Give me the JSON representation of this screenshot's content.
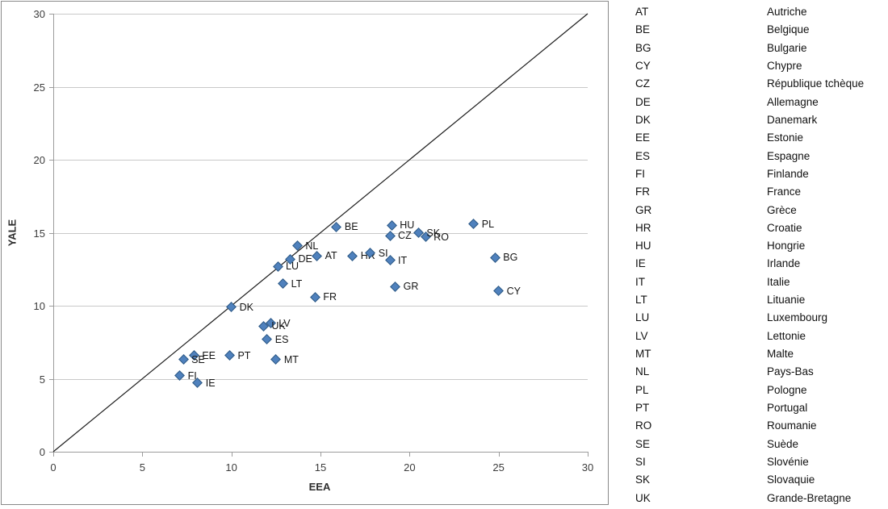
{
  "chart_data": {
    "type": "scatter",
    "title": "",
    "xlabel": "EEA",
    "ylabel": "YALE",
    "xlim": [
      0,
      30
    ],
    "ylim": [
      0,
      30
    ],
    "xticks": [
      0,
      5,
      10,
      15,
      20,
      25,
      30
    ],
    "yticks": [
      0,
      5,
      10,
      15,
      20,
      25,
      30
    ],
    "grid": "horizontal gridlines every 5 units",
    "reference_line": {
      "type": "diagonal",
      "from": [
        0,
        0
      ],
      "to": [
        30,
        30
      ]
    },
    "marker": {
      "shape": "diamond",
      "fill": "#4f81bd",
      "border": "#2e5984"
    },
    "points": [
      {
        "label": "AT",
        "x": 14.8,
        "y": 13.4
      },
      {
        "label": "BE",
        "x": 15.9,
        "y": 15.4
      },
      {
        "label": "BG",
        "x": 24.8,
        "y": 13.3
      },
      {
        "label": "CY",
        "x": 25.0,
        "y": 11.0
      },
      {
        "label": "CZ",
        "x": 18.9,
        "y": 14.8
      },
      {
        "label": "DE",
        "x": 13.3,
        "y": 13.2
      },
      {
        "label": "DK",
        "x": 10.0,
        "y": 9.9
      },
      {
        "label": "EE",
        "x": 7.9,
        "y": 6.6
      },
      {
        "label": "ES",
        "x": 12.0,
        "y": 7.7
      },
      {
        "label": "FI",
        "x": 7.1,
        "y": 5.2
      },
      {
        "label": "FR",
        "x": 14.7,
        "y": 10.6
      },
      {
        "label": "GR",
        "x": 19.2,
        "y": 11.3
      },
      {
        "label": "HR",
        "x": 16.8,
        "y": 13.4
      },
      {
        "label": "HU",
        "x": 19.0,
        "y": 15.5
      },
      {
        "label": "IE",
        "x": 8.1,
        "y": 4.7
      },
      {
        "label": "IT",
        "x": 18.9,
        "y": 13.1
      },
      {
        "label": "LT",
        "x": 12.9,
        "y": 11.5
      },
      {
        "label": "LU",
        "x": 12.6,
        "y": 12.7
      },
      {
        "label": "LV",
        "x": 12.2,
        "y": 8.8
      },
      {
        "label": "MT",
        "x": 12.5,
        "y": 6.3
      },
      {
        "label": "NL",
        "x": 13.7,
        "y": 14.1
      },
      {
        "label": "PL",
        "x": 23.6,
        "y": 15.6
      },
      {
        "label": "PT",
        "x": 9.9,
        "y": 6.6
      },
      {
        "label": "RO",
        "x": 20.9,
        "y": 14.7
      },
      {
        "label": "SE",
        "x": 7.3,
        "y": 6.3
      },
      {
        "label": "SI",
        "x": 17.8,
        "y": 13.6
      },
      {
        "label": "SK",
        "x": 20.5,
        "y": 15.0
      },
      {
        "label": "UK",
        "x": 11.8,
        "y": 8.6
      }
    ]
  },
  "legend": {
    "entries": [
      {
        "code": "AT",
        "name": "Autriche"
      },
      {
        "code": "BE",
        "name": "Belgique"
      },
      {
        "code": "BG",
        "name": "Bulgarie"
      },
      {
        "code": "CY",
        "name": "Chypre"
      },
      {
        "code": "CZ",
        "name": "République tchèque"
      },
      {
        "code": "DE",
        "name": "Allemagne"
      },
      {
        "code": "DK",
        "name": "Danemark"
      },
      {
        "code": "EE",
        "name": "Estonie"
      },
      {
        "code": "ES",
        "name": "Espagne"
      },
      {
        "code": "FI",
        "name": "Finlande"
      },
      {
        "code": "FR",
        "name": "France"
      },
      {
        "code": "GR",
        "name": "Grèce"
      },
      {
        "code": "HR",
        "name": "Croatie"
      },
      {
        "code": "HU",
        "name": "Hongrie"
      },
      {
        "code": "IE",
        "name": "Irlande"
      },
      {
        "code": "IT",
        "name": "Italie"
      },
      {
        "code": "LT",
        "name": "Lituanie"
      },
      {
        "code": "LU",
        "name": "Luxembourg"
      },
      {
        "code": "LV",
        "name": "Lettonie"
      },
      {
        "code": "MT",
        "name": "Malte"
      },
      {
        "code": "NL",
        "name": "Pays-Bas"
      },
      {
        "code": "PL",
        "name": "Pologne"
      },
      {
        "code": "PT",
        "name": "Portugal"
      },
      {
        "code": "RO",
        "name": "Roumanie"
      },
      {
        "code": "SE",
        "name": "Suède"
      },
      {
        "code": "SI",
        "name": "Slovénie"
      },
      {
        "code": "SK",
        "name": "Slovaquie"
      },
      {
        "code": "UK",
        "name": "Grande-Bretagne"
      }
    ]
  }
}
